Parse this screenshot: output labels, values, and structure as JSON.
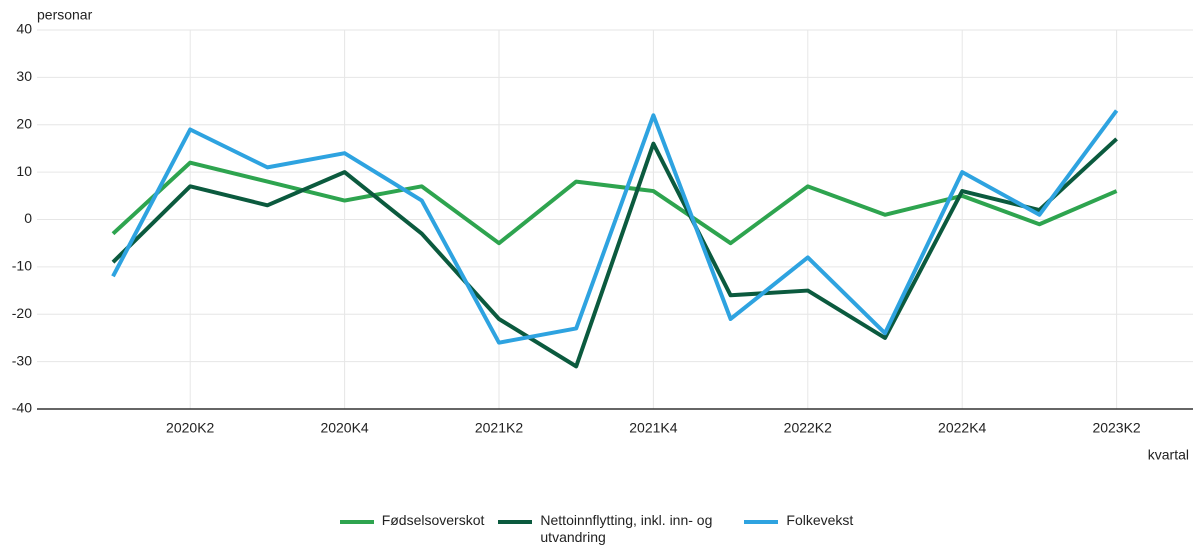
{
  "chart_data": {
    "type": "line",
    "ylabel": "personar",
    "xlabel": "kvartal",
    "categories": [
      null,
      "2020K2",
      null,
      "2020K4",
      null,
      "2021K2",
      null,
      "2021K4",
      null,
      "2022K2",
      null,
      "2022K4",
      null,
      "2023K2"
    ],
    "series": [
      {
        "name": "Fødselsoverskot",
        "color": "#2ea44f",
        "values": [
          -3,
          12,
          8,
          4,
          7,
          -5,
          8,
          6,
          -5,
          7,
          1,
          5,
          -1,
          6
        ]
      },
      {
        "name": "Nettoinnflytting, inkl. inn- og utvandring",
        "color": "#0b5a3e",
        "values": [
          -9,
          7,
          3,
          10,
          -3,
          -21,
          -31,
          16,
          -16,
          -15,
          -25,
          6,
          2,
          17
        ]
      },
      {
        "name": "Folkevekst",
        "color": "#2ea3e0",
        "values": [
          -12,
          19,
          11,
          14,
          4,
          -26,
          -23,
          22,
          -21,
          -8,
          -24,
          10,
          1,
          23
        ]
      }
    ],
    "ylim": [
      -40,
      40
    ],
    "yticks": [
      -40,
      -30,
      -20,
      -10,
      0,
      10,
      20,
      30,
      40
    ],
    "grid": true
  }
}
